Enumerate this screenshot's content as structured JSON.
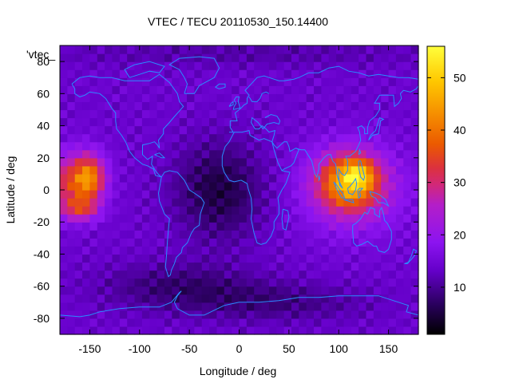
{
  "chart_data": {
    "type": "heatmap",
    "title": "VTEC / TECU 20110530_150.14400",
    "key_label": "'vtec_",
    "xlabel": "Longitude / deg",
    "ylabel": "Latitude / deg",
    "xlim": [
      -180,
      180
    ],
    "ylim": [
      -90,
      90
    ],
    "x_ticks": [
      -150,
      -100,
      -50,
      0,
      50,
      100,
      150
    ],
    "y_ticks": [
      -80,
      -60,
      -40,
      -20,
      0,
      20,
      40,
      60,
      80
    ],
    "colorbar": {
      "range": [
        1,
        56
      ],
      "ticks": [
        10,
        20,
        30,
        40,
        50
      ],
      "palette": [
        "#000000",
        "#3a0070",
        "#7a00e0",
        "#a020f0",
        "#d02080",
        "#e04030",
        "#f07000",
        "#f8a000",
        "#ffd000",
        "#ffff40"
      ]
    },
    "grid": false,
    "legend": "none",
    "overlay": "coastlines",
    "resolution": {
      "lon_step_deg": 7.5,
      "lat_step_deg": 5
    },
    "features": [
      {
        "name": "equatorial anomaly pacific",
        "lon": -150,
        "lat": 5,
        "value": 46
      },
      {
        "name": "equatorial anomaly asia",
        "lon": 110,
        "lat": 2,
        "value": 56
      },
      {
        "name": "background mid-latitude",
        "value": 14
      },
      {
        "name": "south atlantic minimum",
        "lon": -20,
        "lat": 5,
        "value": 5
      },
      {
        "name": "polar south",
        "value": 6
      }
    ]
  },
  "colors": {
    "coastline": "#2a8cff",
    "axis": "#000000",
    "background": "#ffffff"
  }
}
